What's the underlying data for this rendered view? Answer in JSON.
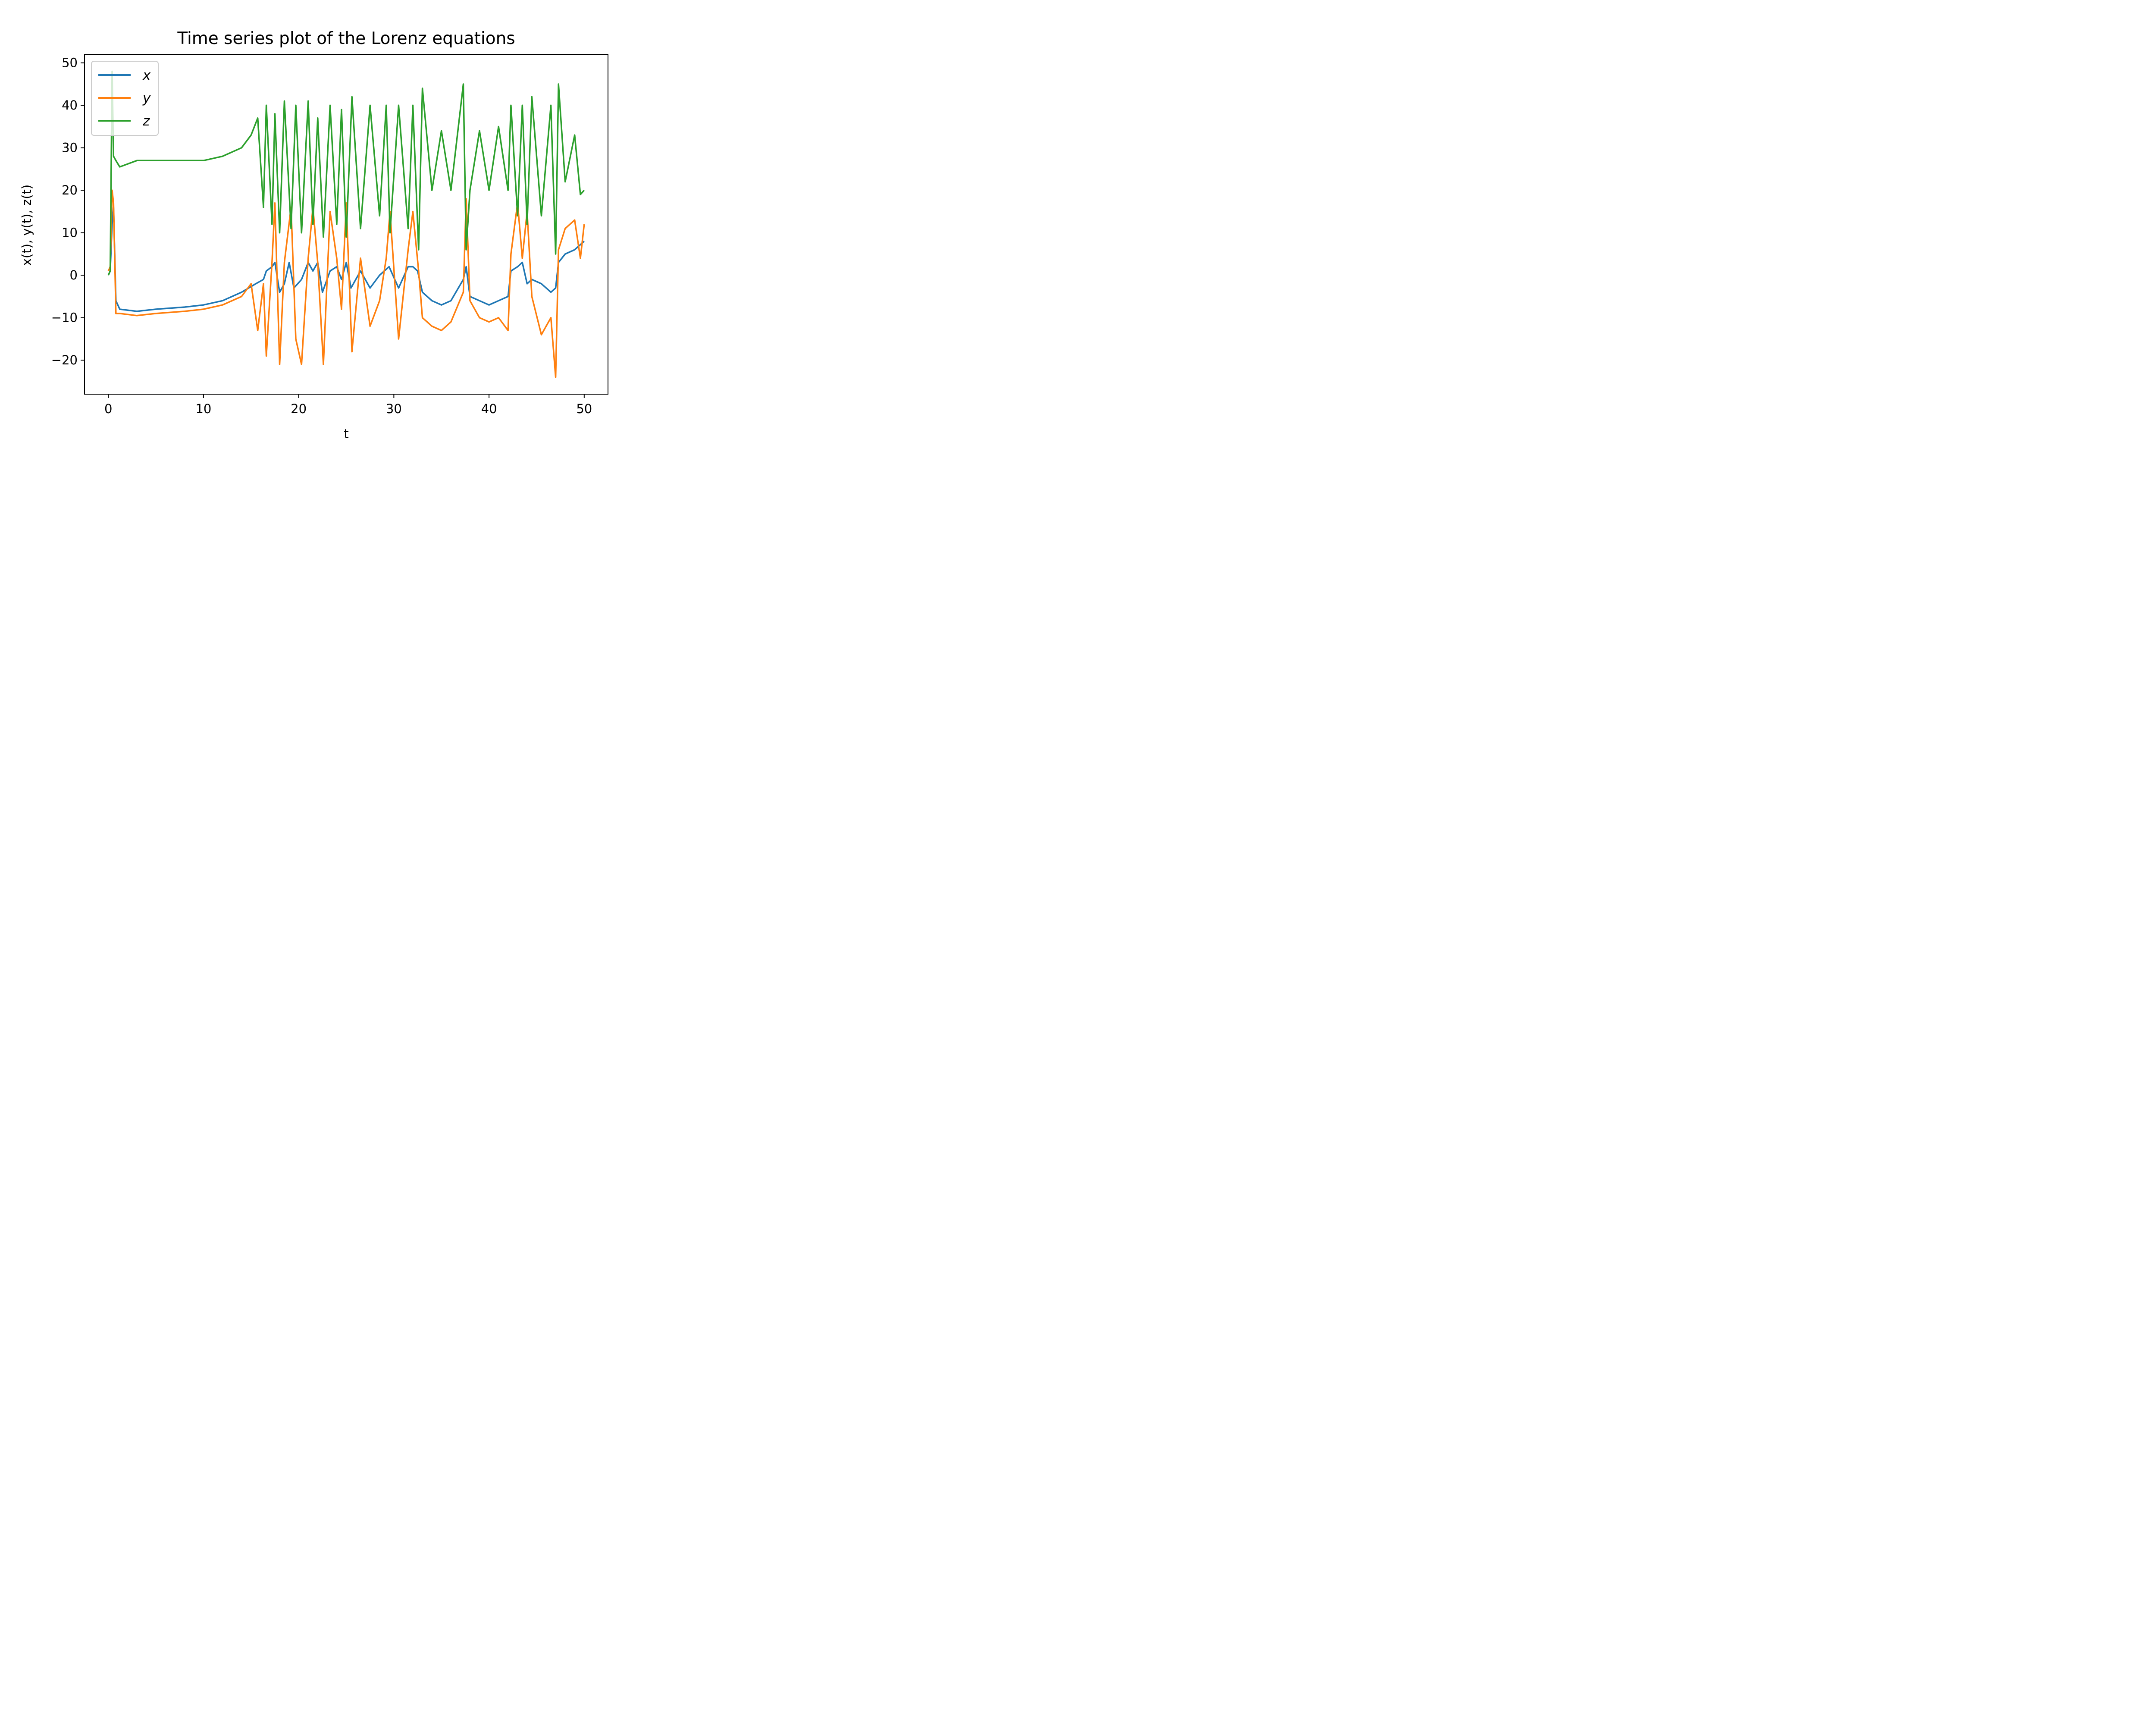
{
  "chart_data": {
    "type": "line",
    "title": "Time series plot of the Lorenz equations",
    "xlabel": "t",
    "ylabel": "x(t), y(t), z(t)",
    "xlim": [
      -2.5,
      52.5
    ],
    "ylim": [
      -28,
      52
    ],
    "xticks": [
      0,
      10,
      20,
      30,
      40,
      50
    ],
    "yticks": [
      -20,
      -10,
      0,
      10,
      20,
      30,
      40,
      50
    ],
    "legend": "upper-left",
    "grid": false,
    "colors": {
      "x": "#1f77b4",
      "y": "#ff7f0e",
      "z": "#2ca02c"
    },
    "series": [
      {
        "key": "x",
        "name": "x",
        "color": "#1f77b4",
        "points": [
          [
            0,
            0
          ],
          [
            0.2,
            1
          ],
          [
            0.4,
            12
          ],
          [
            0.55,
            16
          ],
          [
            0.8,
            -6
          ],
          [
            1.2,
            -8
          ],
          [
            3,
            -8.5
          ],
          [
            5,
            -8
          ],
          [
            8,
            -7.5
          ],
          [
            10,
            -7
          ],
          [
            12,
            -6
          ],
          [
            14,
            -4
          ],
          [
            15.5,
            -2
          ],
          [
            16.3,
            -1
          ],
          [
            16.6,
            1
          ],
          [
            17.2,
            2
          ],
          [
            17.5,
            3
          ],
          [
            18,
            -4
          ],
          [
            18.5,
            -2
          ],
          [
            19,
            3
          ],
          [
            19.5,
            -3
          ],
          [
            20.3,
            -1
          ],
          [
            21,
            3
          ],
          [
            21.5,
            1
          ],
          [
            22,
            3
          ],
          [
            22.5,
            -4
          ],
          [
            23.3,
            1
          ],
          [
            24,
            2
          ],
          [
            24.5,
            -1
          ],
          [
            25,
            3
          ],
          [
            25.5,
            -3
          ],
          [
            26.5,
            1
          ],
          [
            27.5,
            -3
          ],
          [
            28.5,
            0
          ],
          [
            29.5,
            2
          ],
          [
            30.5,
            -3
          ],
          [
            31.5,
            2
          ],
          [
            32,
            2
          ],
          [
            32.5,
            1
          ],
          [
            33,
            -4
          ],
          [
            34,
            -6
          ],
          [
            35,
            -7
          ],
          [
            36,
            -6
          ],
          [
            37.3,
            -1
          ],
          [
            37.6,
            2
          ],
          [
            38,
            -5
          ],
          [
            39,
            -6
          ],
          [
            40,
            -7
          ],
          [
            41,
            -6
          ],
          [
            42,
            -5
          ],
          [
            42.3,
            1
          ],
          [
            43,
            2
          ],
          [
            43.5,
            3
          ],
          [
            44,
            -2
          ],
          [
            44.5,
            -1
          ],
          [
            45.5,
            -2
          ],
          [
            46.5,
            -4
          ],
          [
            47,
            -3
          ],
          [
            47.3,
            3
          ],
          [
            48,
            5
          ],
          [
            49,
            6
          ],
          [
            50,
            8
          ]
        ]
      },
      {
        "key": "y",
        "name": "y",
        "color": "#ff7f0e",
        "points": [
          [
            0,
            1
          ],
          [
            0.2,
            2
          ],
          [
            0.4,
            20
          ],
          [
            0.55,
            17
          ],
          [
            0.8,
            -9
          ],
          [
            1.2,
            -9
          ],
          [
            3,
            -9.5
          ],
          [
            5,
            -9
          ],
          [
            8,
            -8.5
          ],
          [
            10,
            -8
          ],
          [
            12,
            -7
          ],
          [
            14,
            -5
          ],
          [
            15,
            -2
          ],
          [
            15.7,
            -13
          ],
          [
            16.3,
            -2
          ],
          [
            16.6,
            -19
          ],
          [
            17.2,
            3
          ],
          [
            17.5,
            17
          ],
          [
            18,
            -21
          ],
          [
            18.5,
            3
          ],
          [
            19.2,
            16
          ],
          [
            19.7,
            -15
          ],
          [
            20.3,
            -21
          ],
          [
            21,
            4
          ],
          [
            21.5,
            16
          ],
          [
            22,
            3
          ],
          [
            22.6,
            -21
          ],
          [
            23.3,
            15
          ],
          [
            24,
            4
          ],
          [
            24.5,
            -8
          ],
          [
            25,
            17
          ],
          [
            25.6,
            -18
          ],
          [
            26.5,
            4
          ],
          [
            27.5,
            -12
          ],
          [
            28.5,
            -6
          ],
          [
            29.2,
            4
          ],
          [
            29.6,
            15
          ],
          [
            30.5,
            -15
          ],
          [
            31.5,
            6
          ],
          [
            32,
            15
          ],
          [
            32.6,
            1
          ],
          [
            33,
            -10
          ],
          [
            34,
            -12
          ],
          [
            35,
            -13
          ],
          [
            36,
            -11
          ],
          [
            37.3,
            -4
          ],
          [
            37.6,
            18
          ],
          [
            38,
            -6
          ],
          [
            39,
            -10
          ],
          [
            40,
            -11
          ],
          [
            41,
            -10
          ],
          [
            42,
            -13
          ],
          [
            42.3,
            5
          ],
          [
            43,
            17
          ],
          [
            43.5,
            4
          ],
          [
            44,
            15
          ],
          [
            44.5,
            -5
          ],
          [
            45.5,
            -14
          ],
          [
            46.5,
            -10
          ],
          [
            47,
            -24
          ],
          [
            47.3,
            6
          ],
          [
            48,
            11
          ],
          [
            49,
            13
          ],
          [
            49.6,
            4
          ],
          [
            50,
            12
          ]
        ]
      },
      {
        "key": "z",
        "name": "z",
        "color": "#2ca02c",
        "points": [
          [
            0,
            0
          ],
          [
            0.2,
            1
          ],
          [
            0.4,
            48
          ],
          [
            0.55,
            28
          ],
          [
            0.8,
            27
          ],
          [
            1.2,
            25.5
          ],
          [
            3,
            27
          ],
          [
            5,
            27
          ],
          [
            8,
            27
          ],
          [
            10,
            27
          ],
          [
            12,
            28
          ],
          [
            14,
            30
          ],
          [
            15,
            33
          ],
          [
            15.7,
            37
          ],
          [
            16.3,
            16
          ],
          [
            16.6,
            40
          ],
          [
            17.2,
            12
          ],
          [
            17.5,
            38
          ],
          [
            18,
            10
          ],
          [
            18.5,
            41
          ],
          [
            19.2,
            11
          ],
          [
            19.7,
            40
          ],
          [
            20.3,
            10
          ],
          [
            21,
            41
          ],
          [
            21.5,
            12
          ],
          [
            22,
            37
          ],
          [
            22.6,
            9
          ],
          [
            23.3,
            40
          ],
          [
            24,
            12
          ],
          [
            24.5,
            39
          ],
          [
            25,
            9
          ],
          [
            25.6,
            42
          ],
          [
            26.5,
            11
          ],
          [
            27.5,
            40
          ],
          [
            28.5,
            14
          ],
          [
            29.2,
            40
          ],
          [
            29.6,
            10
          ],
          [
            30.5,
            40
          ],
          [
            31.5,
            11
          ],
          [
            32,
            40
          ],
          [
            32.6,
            6
          ],
          [
            33,
            44
          ],
          [
            34,
            20
          ],
          [
            35,
            34
          ],
          [
            36,
            20
          ],
          [
            37.3,
            45
          ],
          [
            37.6,
            6
          ],
          [
            38,
            20
          ],
          [
            39,
            34
          ],
          [
            40,
            20
          ],
          [
            41,
            35
          ],
          [
            42,
            20
          ],
          [
            42.3,
            40
          ],
          [
            43,
            14
          ],
          [
            43.5,
            40
          ],
          [
            44,
            12
          ],
          [
            44.5,
            42
          ],
          [
            45.5,
            14
          ],
          [
            46.5,
            40
          ],
          [
            47,
            5
          ],
          [
            47.3,
            45
          ],
          [
            48,
            22
          ],
          [
            49,
            33
          ],
          [
            49.6,
            19
          ],
          [
            50,
            20
          ]
        ]
      }
    ]
  }
}
